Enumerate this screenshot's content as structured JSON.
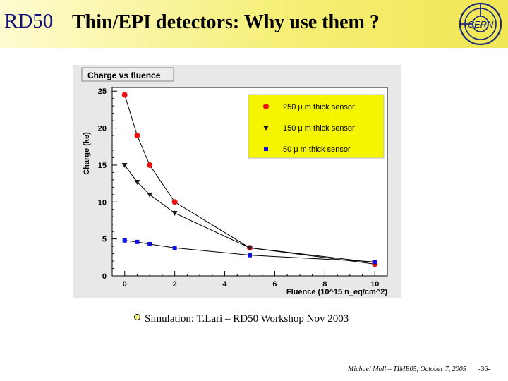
{
  "header": {
    "logo_text": "RD50",
    "title": "Thin/EPI detectors: Why use them ?",
    "cern_logo_text": "CERN"
  },
  "chart_data": {
    "type": "line",
    "title": "Charge vs fluence",
    "xlabel": "Fluence (10^15 n_eq/cm^2)",
    "ylabel": "Charge (ke)",
    "xlim": [
      -0.5,
      10.5
    ],
    "ylim": [
      0,
      25.5
    ],
    "x_ticks": [
      0,
      2,
      4,
      6,
      8,
      10
    ],
    "y_ticks": [
      0,
      5,
      10,
      15,
      20,
      25
    ],
    "legend_position": "top-right",
    "legend_background": "#f5f500",
    "plot_background": "#ffffff",
    "series": [
      {
        "name": "250 μ m thick sensor",
        "marker": "circle",
        "color": "#e81010",
        "x": [
          0,
          0.5,
          1,
          2,
          5,
          10
        ],
        "y": [
          24.5,
          19,
          15,
          10,
          3.8,
          1.6
        ]
      },
      {
        "name": "150 μ m thick sensor",
        "marker": "triangle-down",
        "color": "#1a1a1a",
        "x": [
          0,
          0.5,
          1,
          2,
          5,
          10
        ],
        "y": [
          15,
          12.7,
          11,
          8.5,
          3.8,
          1.8
        ]
      },
      {
        "name": "50 μ m thick sensor",
        "marker": "square",
        "color": "#1010e0",
        "x": [
          0,
          0.5,
          1,
          2,
          5,
          10
        ],
        "y": [
          4.8,
          4.6,
          4.3,
          3.8,
          2.8,
          1.9
        ]
      }
    ]
  },
  "bullet": {
    "text": "Simulation: T.Lari – RD50 Workshop Nov 2003"
  },
  "footer": {
    "credit": "Michael Moll – TIME05, October 7, 2005",
    "page": "-36-"
  }
}
